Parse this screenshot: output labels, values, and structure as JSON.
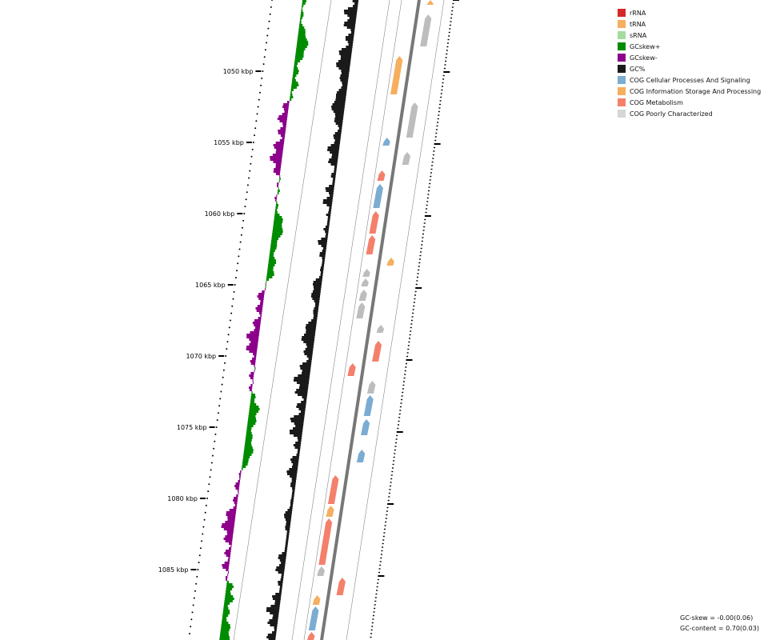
{
  "legend": {
    "items": [
      {
        "label": "rRNA",
        "color": "#d62728"
      },
      {
        "label": "tRNA",
        "color": "#f6ae5f"
      },
      {
        "label": "sRNA",
        "color": "#a6dba0"
      },
      {
        "label": "GCskew+",
        "color": "#008c00"
      },
      {
        "label": "GCskew-",
        "color": "#8c008c"
      },
      {
        "label": "GC%",
        "color": "#1a1a1a"
      },
      {
        "label": "COG Cellular Processes And Signaling",
        "color": "#7bacd2"
      },
      {
        "label": "COG Information Storage And Processing",
        "color": "#f6ae5f"
      },
      {
        "label": "COG Metabolism",
        "color": "#f4806c"
      },
      {
        "label": "COG Poorly Characterized",
        "color": "#d6d6d6"
      }
    ]
  },
  "scale": {
    "unit": "kbp",
    "labels": [
      "1050 kbp",
      "1055 kbp",
      "1060 kbp",
      "1065 kbp",
      "1070 kbp",
      "1075 kbp",
      "1080 kbp",
      "1085 kbp"
    ]
  },
  "stats": {
    "gc_skew": "GC-skew = -0.00(0.06)",
    "gc_content": "GC-content = 0.70(0.03)"
  }
}
